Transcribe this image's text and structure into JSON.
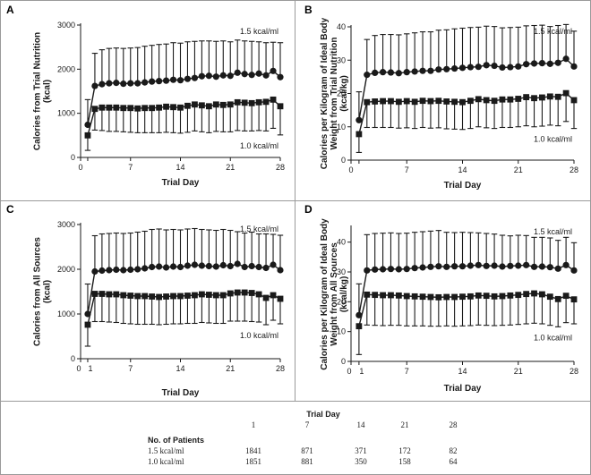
{
  "figure": {
    "x_label": "Trial Day",
    "x_ticks": [
      0,
      1,
      7,
      14,
      21,
      28
    ],
    "series_names": [
      "1.5 kcal/ml",
      "1.0 kcal/ml"
    ]
  },
  "chart_data": [
    {
      "type": "line",
      "panel": "A",
      "ylabel": [
        "Calories from Trial Nutrition",
        "(kcal)"
      ],
      "xlabel": "Trial Day",
      "ylim": [
        0,
        3000
      ],
      "yticks": [
        0,
        1000,
        2000,
        3000
      ],
      "x": [
        1,
        2,
        3,
        4,
        5,
        6,
        7,
        8,
        9,
        10,
        11,
        12,
        13,
        14,
        15,
        16,
        17,
        18,
        19,
        20,
        21,
        22,
        23,
        24,
        25,
        26,
        27,
        28
      ],
      "series": [
        {
          "name": "1.5 kcal/ml",
          "marker": "circle",
          "values": [
            740,
            1620,
            1660,
            1680,
            1690,
            1670,
            1680,
            1680,
            1700,
            1720,
            1730,
            1740,
            1760,
            1750,
            1780,
            1800,
            1840,
            1850,
            1830,
            1860,
            1850,
            1920,
            1890,
            1870,
            1900,
            1860,
            1960,
            1820
          ],
          "err": [
            570,
            740,
            780,
            790,
            790,
            800,
            800,
            810,
            820,
            820,
            830,
            830,
            840,
            840,
            840,
            830,
            800,
            790,
            800,
            780,
            770,
            740,
            750,
            760,
            720,
            740,
            650,
            780
          ]
        },
        {
          "name": "1.0 kcal/ml",
          "marker": "square",
          "values": [
            500,
            1100,
            1130,
            1130,
            1130,
            1120,
            1120,
            1110,
            1120,
            1120,
            1130,
            1150,
            1140,
            1130,
            1170,
            1200,
            1180,
            1160,
            1200,
            1190,
            1200,
            1250,
            1240,
            1230,
            1250,
            1260,
            1310,
            1160
          ],
          "err": [
            340,
            480,
            520,
            540,
            540,
            540,
            550,
            550,
            560,
            560,
            570,
            580,
            580,
            580,
            600,
            600,
            600,
            600,
            610,
            610,
            620,
            640,
            640,
            630,
            640,
            660,
            650,
            650
          ]
        }
      ]
    },
    {
      "type": "line",
      "panel": "B",
      "ylabel": [
        "Calories per Kilogram of Ideal Body",
        "Weight from Trial Nutrition",
        "(kcal/kg)"
      ],
      "xlabel": "Trial Day",
      "ylim": [
        0,
        40
      ],
      "yticks": [
        0,
        10,
        20,
        30,
        40
      ],
      "x": [
        1,
        2,
        3,
        4,
        5,
        6,
        7,
        8,
        9,
        10,
        11,
        12,
        13,
        14,
        15,
        16,
        17,
        18,
        19,
        20,
        21,
        22,
        23,
        24,
        25,
        26,
        27,
        28
      ],
      "series": [
        {
          "name": "1.5 kcal/ml",
          "marker": "circle",
          "values": [
            12,
            25.6,
            26.2,
            26.4,
            26.3,
            26.1,
            26.4,
            26.6,
            26.8,
            26.8,
            27.2,
            27.3,
            27.5,
            27.7,
            27.9,
            28.0,
            28.5,
            28.3,
            27.8,
            27.9,
            28.1,
            28.8,
            29.0,
            29.1,
            28.9,
            29.2,
            30.4,
            28.1
          ],
          "err": [
            8.5,
            10.6,
            11.2,
            11.3,
            11.4,
            11.5,
            11.5,
            11.6,
            11.7,
            11.7,
            11.8,
            11.8,
            11.9,
            11.9,
            11.9,
            11.9,
            11.7,
            11.8,
            11.9,
            11.9,
            11.8,
            11.5,
            11.4,
            11.4,
            11.2,
            11.2,
            10.3,
            10.6
          ]
        },
        {
          "name": "1.0 kcal/ml",
          "marker": "square",
          "values": [
            7.8,
            17.4,
            17.6,
            17.7,
            17.7,
            17.5,
            17.7,
            17.5,
            17.8,
            17.7,
            17.8,
            17.6,
            17.5,
            17.4,
            17.8,
            18.3,
            18.0,
            17.8,
            18.2,
            18.2,
            18.4,
            18.9,
            18.6,
            18.8,
            19.1,
            19.0,
            20.1,
            18.0
          ],
          "err": [
            5.5,
            7.6,
            7.8,
            7.9,
            7.9,
            7.9,
            8.0,
            8.0,
            8.0,
            8.1,
            8.1,
            8.2,
            8.2,
            8.2,
            8.3,
            8.3,
            8.3,
            8.3,
            8.4,
            8.4,
            8.4,
            8.6,
            8.6,
            8.6,
            8.6,
            8.7,
            8.5,
            8.5
          ]
        }
      ]
    },
    {
      "type": "line",
      "panel": "C",
      "ylabel": [
        "Calories from All Sources",
        "(kcal)"
      ],
      "xlabel": "Trial Day",
      "ylim": [
        0,
        3000
      ],
      "yticks": [
        0,
        1000,
        2000,
        3000
      ],
      "x": [
        1,
        2,
        3,
        4,
        5,
        6,
        7,
        8,
        9,
        10,
        11,
        12,
        13,
        14,
        15,
        16,
        17,
        18,
        19,
        20,
        21,
        22,
        23,
        24,
        25,
        26,
        27,
        28
      ],
      "series": [
        {
          "name": "1.5 kcal/ml",
          "marker": "circle",
          "values": [
            1000,
            1950,
            1970,
            1980,
            1990,
            1980,
            1990,
            2000,
            2020,
            2050,
            2060,
            2040,
            2060,
            2050,
            2080,
            2100,
            2080,
            2070,
            2060,
            2090,
            2070,
            2120,
            2050,
            2070,
            2050,
            2030,
            2100,
            1980
          ],
          "err": [
            670,
            800,
            820,
            820,
            820,
            820,
            820,
            830,
            830,
            840,
            840,
            840,
            830,
            830,
            820,
            810,
            810,
            810,
            810,
            800,
            800,
            720,
            760,
            760,
            740,
            760,
            680,
            780
          ]
        },
        {
          "name": "1.0 kcal/ml",
          "marker": "square",
          "values": [
            760,
            1450,
            1450,
            1440,
            1440,
            1420,
            1410,
            1400,
            1400,
            1390,
            1380,
            1390,
            1400,
            1400,
            1410,
            1420,
            1440,
            1430,
            1420,
            1420,
            1460,
            1480,
            1480,
            1470,
            1440,
            1360,
            1420,
            1340
          ],
          "err": [
            480,
            620,
            620,
            620,
            630,
            630,
            630,
            630,
            630,
            620,
            620,
            620,
            620,
            620,
            620,
            630,
            630,
            630,
            630,
            630,
            620,
            640,
            640,
            640,
            620,
            600,
            560,
            560
          ]
        }
      ]
    },
    {
      "type": "line",
      "panel": "D",
      "ylabel": [
        "Calories per Kilogram of Ideal Body",
        "Weight from All Sources",
        "(kcal/kg)"
      ],
      "xlabel": "Trial Day",
      "ylim": [
        0,
        45
      ],
      "yticks": [
        0,
        10,
        20,
        30,
        40
      ],
      "x": [
        1,
        2,
        3,
        4,
        5,
        6,
        7,
        8,
        9,
        10,
        11,
        12,
        13,
        14,
        15,
        16,
        17,
        18,
        19,
        20,
        21,
        22,
        23,
        24,
        25,
        26,
        27,
        28
      ],
      "series": [
        {
          "name": "1.5 kcal/ml",
          "marker": "circle",
          "values": [
            15.5,
            30.5,
            30.8,
            30.9,
            31.0,
            30.9,
            31.0,
            31.3,
            31.5,
            31.7,
            31.9,
            31.7,
            31.9,
            31.9,
            32.1,
            32.3,
            32.0,
            32.1,
            31.8,
            32.0,
            32.1,
            32.3,
            31.7,
            31.8,
            31.6,
            31.1,
            32.3,
            30.5
          ],
          "err": [
            10.5,
            12.0,
            12.1,
            12.1,
            12.1,
            12.0,
            12.0,
            12.0,
            12.0,
            12.0,
            12.0,
            11.6,
            11.3,
            11.4,
            11.1,
            10.8,
            10.9,
            10.6,
            10.5,
            10.1,
            10.2,
            9.9,
            9.9,
            9.8,
            9.8,
            9.5,
            9.3,
            9.3
          ]
        },
        {
          "name": "1.0 kcal/ml",
          "marker": "square",
          "values": [
            11.8,
            22.4,
            22.3,
            22.2,
            22.2,
            22.1,
            21.9,
            21.8,
            21.7,
            21.6,
            21.5,
            21.6,
            21.6,
            21.7,
            21.8,
            22.1,
            22.0,
            21.8,
            21.9,
            22.1,
            22.3,
            22.6,
            22.8,
            22.5,
            21.7,
            20.9,
            22.0,
            20.8
          ],
          "err": [
            9.5,
            10.2,
            10.2,
            10.2,
            10.1,
            10.0,
            10.0,
            9.9,
            9.8,
            9.8,
            9.7,
            9.7,
            9.8,
            9.8,
            9.8,
            9.9,
            9.9,
            9.8,
            9.8,
            9.9,
            9.9,
            10.0,
            10.0,
            9.9,
            9.6,
            9.3,
            9.0,
            8.2
          ]
        }
      ]
    }
  ],
  "table": {
    "title": "Trial Day",
    "days": [
      "1",
      "7",
      "14",
      "21",
      "28"
    ],
    "header": "No. of Patients",
    "rows": [
      {
        "label": "1.5 kcal/ml",
        "counts": [
          "1841",
          "871",
          "371",
          "172",
          "82"
        ]
      },
      {
        "label": "1.0 kcal/ml",
        "counts": [
          "1851",
          "881",
          "350",
          "158",
          "64"
        ]
      }
    ]
  }
}
